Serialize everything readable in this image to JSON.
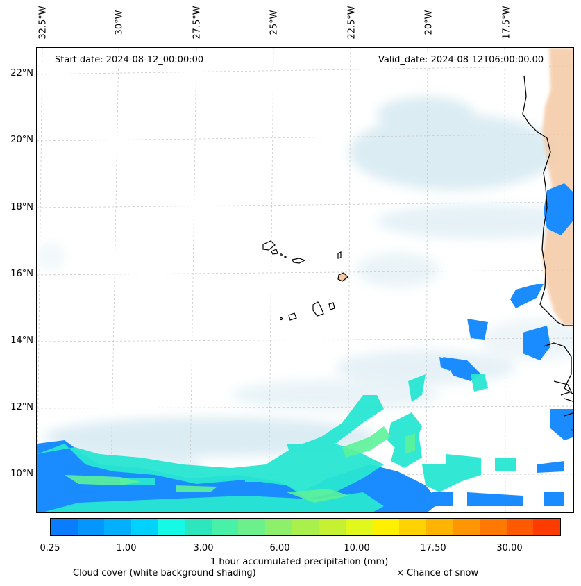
{
  "annotations": {
    "start_date": "Start date: 2024-08-12_00:00:00",
    "valid_date": "Valid_date: 2024-08-12T06:00:00.00"
  },
  "longitude_labels": [
    "32.5°W",
    "30°W",
    "27.5°W",
    "25°W",
    "22.5°W",
    "20°W",
    "17.5°W"
  ],
  "latitude_labels": [
    "22°N",
    "20°N",
    "18°N",
    "16°N",
    "14°N",
    "12°N",
    "10°N"
  ],
  "colorbar": {
    "title": "1 hour accumulated precipitation (mm)",
    "tick_labels": [
      "0.25",
      "1.00",
      "3.00",
      "6.00",
      "10.00",
      "17.50",
      "30.00"
    ],
    "colors": [
      "#0a7cff",
      "#0496ff",
      "#00b0ff",
      "#00d2ff",
      "#14fae6",
      "#2ee6be",
      "#48f0a8",
      "#6cf08c",
      "#8cf06c",
      "#aaf04c",
      "#c6f032",
      "#e0f81c",
      "#fff000",
      "#ffd200",
      "#ffb400",
      "#ff9600",
      "#ff7800",
      "#ff5a00",
      "#ff3c00"
    ]
  },
  "legend": {
    "cloud_cover": "Cloud cover (white background shading)",
    "snow": "× Chance of snow"
  },
  "colors": {
    "cloud": "#cfe6ef",
    "precip_blue": "#1a8cff",
    "precip_cyan": "#28e6d2",
    "precip_green": "#5cf29a",
    "land_orange": "#f4c9a4",
    "coast": "#000000"
  }
}
